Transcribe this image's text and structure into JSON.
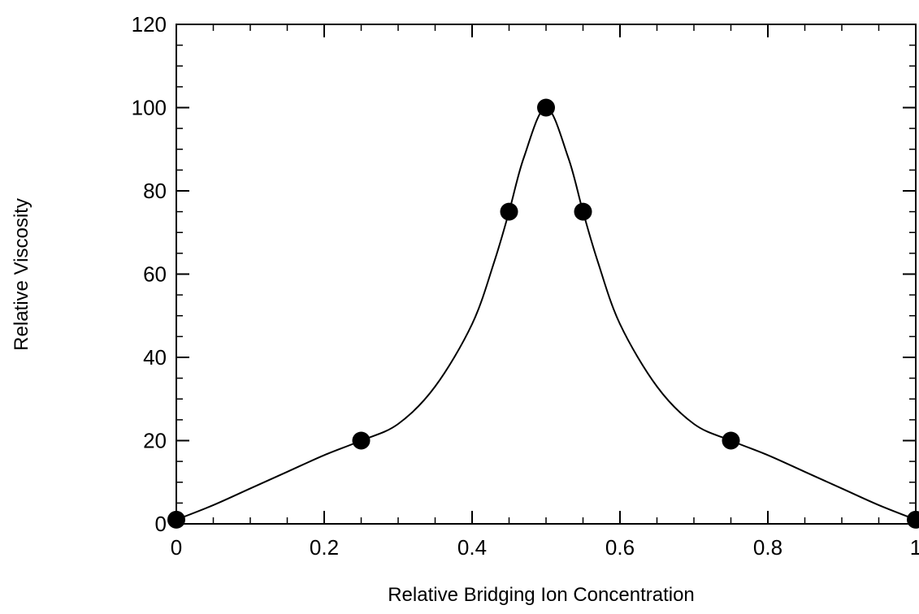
{
  "chart_data": {
    "type": "line",
    "title": "",
    "xlabel": "Relative Bridging Ion Concentration",
    "ylabel": "Relative Viscosity",
    "xlim": [
      0,
      1
    ],
    "ylim": [
      0,
      120
    ],
    "xticks": [
      {
        "value": 0,
        "label": "0"
      },
      {
        "value": 0.2,
        "label": "0.2"
      },
      {
        "value": 0.4,
        "label": "0.4"
      },
      {
        "value": 0.6,
        "label": "0.6"
      },
      {
        "value": 0.8,
        "label": "0.8"
      },
      {
        "value": 1,
        "label": "1"
      }
    ],
    "yticks": [
      {
        "value": 0,
        "label": "0"
      },
      {
        "value": 20,
        "label": "20"
      },
      {
        "value": 40,
        "label": "40"
      },
      {
        "value": 60,
        "label": "60"
      },
      {
        "value": 80,
        "label": "80"
      },
      {
        "value": 100,
        "label": "100"
      },
      {
        "value": 120,
        "label": "120"
      }
    ],
    "x_minor_step": 0.05,
    "y_minor_step": 5,
    "grid": false,
    "series": [
      {
        "kind": "markers",
        "x": [
          0,
          0.25,
          0.45,
          0.5,
          0.55,
          0.75,
          1
        ],
        "y": [
          1,
          20,
          75,
          100,
          75,
          20,
          1
        ]
      },
      {
        "kind": "smooth-curve",
        "x": [
          0,
          0.05,
          0.1,
          0.15,
          0.2,
          0.25,
          0.3,
          0.35,
          0.4,
          0.43,
          0.45,
          0.47,
          0.5,
          0.53,
          0.55,
          0.57,
          0.6,
          0.65,
          0.7,
          0.75,
          0.8,
          0.85,
          0.9,
          0.95,
          1
        ],
        "y": [
          1,
          4.5,
          8.5,
          12.5,
          16.5,
          20,
          24,
          33,
          48,
          63,
          75,
          88,
          100,
          88,
          75,
          63,
          48,
          33,
          24,
          20,
          16.5,
          12.5,
          8.5,
          4.5,
          1
        ]
      }
    ],
    "colors": {
      "line": "#000000",
      "marker": "#000000",
      "axis": "#000000"
    }
  }
}
